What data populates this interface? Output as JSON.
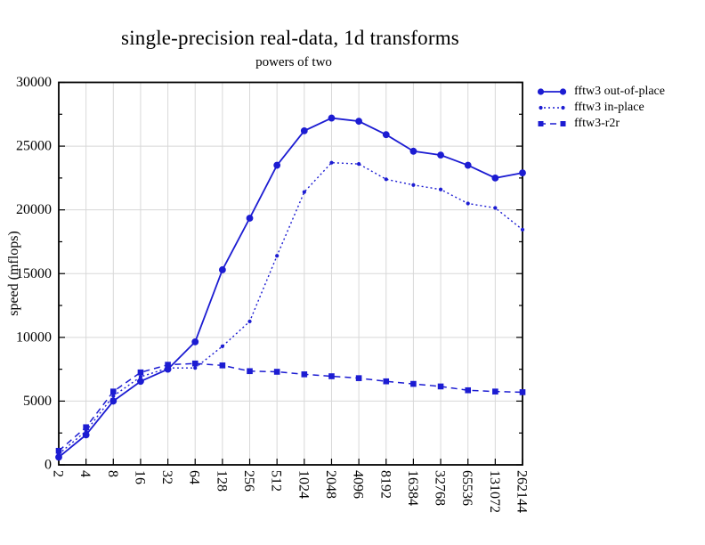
{
  "chart_data": {
    "type": "line",
    "title": "single-precision real-data, 1d transforms",
    "subtitle": "powers of two",
    "xlabel": "",
    "ylabel": "speed (mflops)",
    "ylim": [
      0,
      30000
    ],
    "y_major_step": 5000,
    "y_minor_step": 2500,
    "grid": true,
    "legend_position": "outside-top-right",
    "x_scale": "log2-categorical",
    "categories": [
      "2",
      "4",
      "8",
      "16",
      "32",
      "64",
      "128",
      "256",
      "512",
      "1024",
      "2048",
      "4096",
      "8192",
      "16384",
      "32768",
      "65536",
      "131072",
      "262144"
    ],
    "y_tick_labels": [
      "0",
      "5000",
      "10000",
      "15000",
      "20000",
      "25000",
      "30000"
    ],
    "series": [
      {
        "name": "fftw3 out-of-place",
        "marker": "circle-large",
        "line_style": "solid",
        "values": [
          600,
          2350,
          5000,
          6550,
          7500,
          9650,
          15300,
          19350,
          23500,
          26200,
          27200,
          26950,
          25900,
          24600,
          24300,
          23500,
          22500,
          22900
        ]
      },
      {
        "name": "fftw3 in-place",
        "marker": "circle-small",
        "line_style": "dotted",
        "values": [
          850,
          2650,
          5400,
          6900,
          7600,
          7600,
          9300,
          11250,
          16400,
          21400,
          23700,
          23600,
          22400,
          21950,
          21600,
          20500,
          20150,
          18450
        ]
      },
      {
        "name": "fftw3-r2r",
        "marker": "square",
        "line_style": "dashed",
        "values": [
          1100,
          2950,
          5750,
          7250,
          7850,
          7950,
          7800,
          7350,
          7300,
          7100,
          6950,
          6800,
          6550,
          6350,
          6150,
          5850,
          5750,
          5700
        ]
      }
    ],
    "colors": {
      "series": "#1c1cd2",
      "grid": "#d8d8d8",
      "frame": "#000000",
      "text": "#000000"
    }
  }
}
